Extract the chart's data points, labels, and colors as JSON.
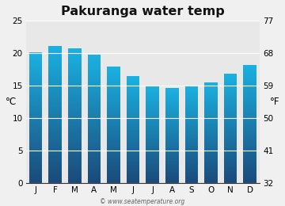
{
  "title": "Pakuranga water temp",
  "months": [
    "J",
    "F",
    "M",
    "A",
    "M",
    "J",
    "J",
    "A",
    "S",
    "O",
    "N",
    "D"
  ],
  "values_c": [
    20.1,
    21.1,
    20.7,
    19.7,
    17.9,
    16.4,
    15.0,
    14.6,
    15.0,
    15.5,
    16.8,
    18.2
  ],
  "ylim_c": [
    0,
    25
  ],
  "yticks_c": [
    0,
    5,
    10,
    15,
    20,
    25
  ],
  "yticks_f": [
    32,
    41,
    50,
    59,
    68,
    77
  ],
  "ylabel_left": "°C",
  "ylabel_right": "°F",
  "bar_color_top": "#1ab0e0",
  "bar_color_mid": "#2090c0",
  "bar_color_bottom": "#1a4a7a",
  "fig_bg_color": "#f0f0f0",
  "plot_bg_color": "#e8e8e8",
  "watermark": "© www.seatemperature.org",
  "title_fontsize": 11.5,
  "tick_fontsize": 7.5,
  "label_fontsize": 8.5,
  "bar_width": 0.68
}
